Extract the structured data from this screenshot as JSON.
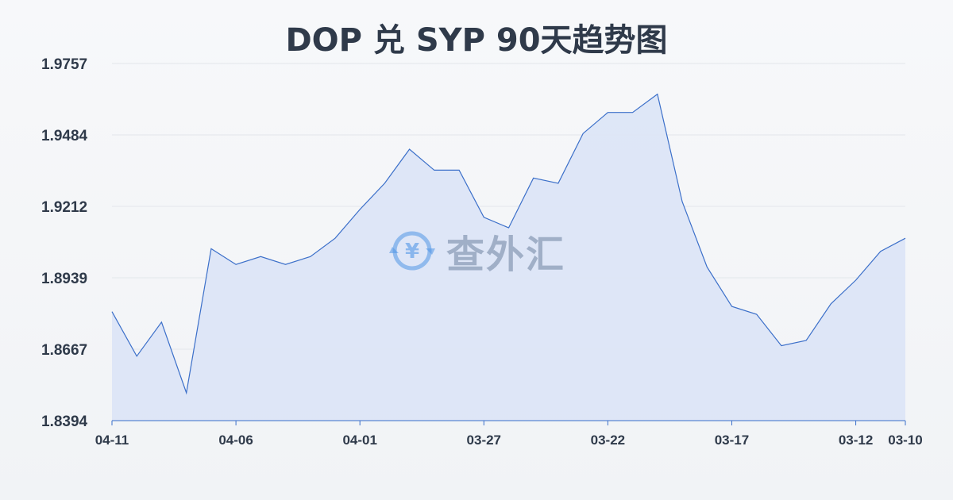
{
  "chart_data": {
    "type": "area",
    "title": "DOP 兑 SYP 90天趋势图",
    "ylim": [
      1.8394,
      1.9757
    ],
    "yticks": [
      "1.9757",
      "1.9484",
      "1.9212",
      "1.8939",
      "1.8667",
      "1.8394"
    ],
    "xticks": [
      {
        "label": "04-11",
        "index": 0
      },
      {
        "label": "04-06",
        "index": 5
      },
      {
        "label": "04-01",
        "index": 10
      },
      {
        "label": "03-27",
        "index": 15
      },
      {
        "label": "03-22",
        "index": 20
      },
      {
        "label": "03-17",
        "index": 25
      },
      {
        "label": "03-12",
        "index": 30
      },
      {
        "label": "03-10",
        "index": 32
      }
    ],
    "grid": true,
    "series": [
      {
        "values": [
          1.881,
          1.864,
          1.877,
          1.85,
          1.905,
          1.899,
          1.902,
          1.899,
          1.902,
          1.909,
          1.92,
          1.93,
          1.943,
          1.935,
          1.935,
          1.917,
          1.913,
          1.932,
          1.93,
          1.949,
          1.957,
          1.957,
          1.964,
          1.923,
          1.898,
          1.883,
          1.88,
          1.868,
          1.87,
          1.884,
          1.893,
          1.904,
          1.909
        ],
        "color": "#3b6fc9"
      }
    ],
    "fill_color": "#dce4f6"
  },
  "watermark": {
    "text": "查外汇",
    "icon": "yuan-exchange-icon"
  }
}
